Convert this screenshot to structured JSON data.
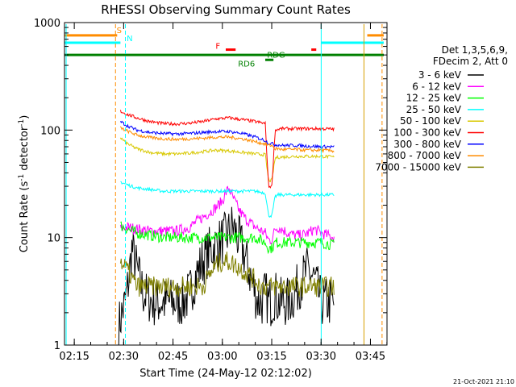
{
  "chart_data": {
    "type": "line",
    "title": "RHESSI Observing Summary Count Rates",
    "xlabel": "Start Time (24-May-12 02:12:02)",
    "ylabel": "Count Rate (s",
    "ylabel_sup": "-1",
    "ylabel_tail": " detector",
    "ylabel_end": ")",
    "yscale": "log",
    "x_unit": "minutes after 02:12:02",
    "xlim": [
      0,
      98
    ],
    "ylim": [
      1,
      1000
    ],
    "x_ticks": [
      {
        "t": 2.97,
        "label": "02:15"
      },
      {
        "t": 17.97,
        "label": "02:30"
      },
      {
        "t": 32.97,
        "label": "02:45"
      },
      {
        "t": 47.97,
        "label": "03:00"
      },
      {
        "t": 62.97,
        "label": "03:15"
      },
      {
        "t": 77.97,
        "label": "03:30"
      },
      {
        "t": 92.97,
        "label": "03:45"
      }
    ],
    "y_ticks": [
      {
        "v": 1,
        "label": "1"
      },
      {
        "v": 10,
        "label": "10"
      },
      {
        "v": 100,
        "label": "100"
      },
      {
        "v": 1000,
        "label": "1000"
      }
    ],
    "legend": {
      "header": [
        "Det 1,3,5,6,9,",
        "FDecim 2, Att 0"
      ],
      "placement": "right"
    },
    "series": [
      {
        "name": "3 - 6 keV",
        "color": "#000000",
        "x": [
          16.5,
          17.5,
          18.5,
          19.5,
          20.5,
          22,
          24,
          27,
          30,
          33,
          36,
          38,
          40,
          42,
          44,
          46,
          48,
          50,
          51,
          52,
          54,
          56,
          58,
          59,
          60,
          61,
          62,
          63,
          64,
          65,
          66,
          68,
          70,
          72,
          74,
          76,
          78,
          80,
          81,
          82
        ],
        "y": [
          1.5,
          2,
          2.5,
          4,
          8,
          5,
          3,
          2.5,
          2.5,
          2.5,
          2.5,
          3,
          4.5,
          6,
          7.5,
          8.5,
          9.5,
          11,
          13,
          11,
          8,
          5,
          3,
          2.5,
          2.5,
          3,
          2.5,
          2.5,
          3,
          2.5,
          2.5,
          2.5,
          3,
          4,
          5,
          4,
          2.5,
          2.5,
          2.5,
          2.5
        ]
      },
      {
        "name": "6 - 12 keV",
        "color": "#ff00ff",
        "x": [
          17,
          19,
          22,
          26,
          30,
          34,
          38,
          40,
          42,
          44,
          46,
          48,
          49,
          50,
          51,
          52,
          53,
          55,
          58,
          61,
          62,
          63,
          64,
          65,
          66,
          68,
          70,
          72,
          74,
          76,
          78,
          80,
          82
        ],
        "y": [
          12,
          12.5,
          12,
          11.5,
          11.5,
          11.5,
          12.5,
          14,
          15.5,
          17,
          19,
          22,
          26,
          29,
          24,
          21,
          18,
          15,
          12.5,
          11,
          9.5,
          9.5,
          12,
          12.5,
          12,
          11,
          10.5,
          10.5,
          11,
          12,
          11,
          10.5,
          10
        ]
      },
      {
        "name": "12 - 25 keV",
        "color": "#00ff00",
        "x": [
          17,
          19,
          22,
          26,
          30,
          34,
          38,
          42,
          46,
          50,
          54,
          58,
          61,
          62,
          63,
          64,
          65,
          66,
          70,
          74,
          78,
          82
        ],
        "y": [
          13,
          12,
          11,
          10.5,
          10,
          10,
          10,
          10,
          10,
          10,
          10,
          10,
          9,
          8,
          8,
          9,
          9,
          9,
          9,
          9,
          9,
          8.5
        ]
      },
      {
        "name": "25 - 50 keV",
        "color": "#00ffff",
        "x": [
          17,
          19,
          22,
          26,
          30,
          34,
          38,
          42,
          46,
          50,
          54,
          58,
          61,
          62,
          63,
          64,
          65,
          66,
          70,
          74,
          78,
          82
        ],
        "y": [
          33,
          31,
          29,
          28,
          27,
          27,
          27,
          27,
          27,
          27,
          27,
          27,
          26,
          16,
          16,
          24,
          25,
          25,
          25,
          25,
          25,
          25
        ]
      },
      {
        "name": "50 - 100 keV",
        "color": "#d8c800",
        "x": [
          17,
          19,
          22,
          26,
          30,
          34,
          38,
          42,
          46,
          50,
          54,
          58,
          61,
          62,
          63,
          64,
          65,
          66,
          70,
          74,
          78,
          82
        ],
        "y": [
          85,
          75,
          67,
          62,
          60,
          60,
          61,
          63,
          65,
          64,
          62,
          60,
          59,
          34,
          34,
          55,
          56,
          56,
          57,
          57,
          57,
          56
        ]
      },
      {
        "name": "100 - 300 keV",
        "color": "#ff0000",
        "x": [
          17,
          19,
          22,
          26,
          30,
          34,
          38,
          42,
          46,
          50,
          54,
          58,
          61,
          62,
          63,
          64,
          65,
          66,
          70,
          74,
          78,
          82
        ],
        "y": [
          150,
          140,
          130,
          120,
          115,
          114,
          116,
          120,
          127,
          130,
          125,
          120,
          115,
          30,
          30,
          100,
          102,
          103,
          103,
          103,
          103,
          102
        ]
      },
      {
        "name": "300 - 800 keV",
        "color": "#0000ff",
        "x": [
          17,
          19,
          22,
          26,
          30,
          34,
          38,
          42,
          46,
          50,
          54,
          58,
          61,
          62,
          63,
          64,
          65,
          66,
          70,
          74,
          78,
          82
        ],
        "y": [
          120,
          110,
          100,
          95,
          93,
          92,
          93,
          95,
          97,
          97,
          93,
          86,
          80,
          75,
          75,
          73,
          73,
          72,
          72,
          71,
          70,
          70
        ]
      },
      {
        "name": "800 - 7000 keV",
        "color": "#ff8c00",
        "x": [
          17,
          19,
          22,
          26,
          30,
          34,
          38,
          42,
          46,
          50,
          54,
          58,
          61,
          62,
          63,
          64,
          65,
          66,
          70,
          74,
          78,
          82
        ],
        "y": [
          105,
          98,
          90,
          85,
          83,
          82,
          83,
          84,
          86,
          86,
          83,
          78,
          74,
          72,
          72,
          67,
          67,
          66,
          66,
          65,
          65,
          64
        ]
      },
      {
        "name": "7000 - 15000 keV",
        "color": "#808000",
        "x": [
          17,
          19,
          22,
          26,
          30,
          34,
          38,
          42,
          44,
          46,
          48,
          50,
          52,
          54,
          56,
          58,
          60,
          61,
          62,
          63,
          64,
          65,
          66,
          70,
          74,
          78,
          82
        ],
        "y": [
          6,
          5,
          3.5,
          3.5,
          3.5,
          3.5,
          3.5,
          3.5,
          4.5,
          5.5,
          6,
          6,
          5.5,
          5,
          4.5,
          4,
          3.5,
          3.5,
          3.5,
          3.5,
          3.5,
          3.5,
          3.5,
          3.5,
          3.5,
          3.5,
          3.5
        ]
      }
    ],
    "annotations": [
      {
        "type": "hline",
        "color": "#ff8c00",
        "y": 760,
        "x0": 0,
        "x1": 16
      },
      {
        "type": "hline",
        "color": "#ff8c00",
        "y": 760,
        "x0": 92,
        "x1": 97
      },
      {
        "type": "hline",
        "color": "#00ffff",
        "y": 650,
        "x0": 0,
        "x1": 17
      },
      {
        "type": "hline",
        "color": "#00ffff",
        "y": 650,
        "x0": 78,
        "x1": 97
      },
      {
        "type": "hline",
        "color": "#008000",
        "y": 500,
        "x0": 0,
        "x1": 97
      },
      {
        "type": "hline",
        "color": "#ff0000",
        "y": 560,
        "x0": 49,
        "x1": 52
      },
      {
        "type": "hline",
        "color": "#ff0000",
        "y": 560,
        "x0": 75,
        "x1": 76.5
      },
      {
        "type": "hline",
        "color": "#008000",
        "y": 450,
        "x0": 61,
        "x1": 63.5
      },
      {
        "type": "vline",
        "color": "#ff8c00",
        "x": 15.5,
        "dashed": true
      },
      {
        "type": "vline",
        "color": "#00ffff",
        "x": 18.5,
        "dashed": true
      },
      {
        "type": "vline",
        "color": "#00ffff",
        "x": 78,
        "dashed": false
      },
      {
        "type": "vline",
        "color": "#d8a000",
        "x": 91,
        "dashed": false
      },
      {
        "type": "vline",
        "color": "#ff8c00",
        "x": 96.5,
        "dashed": true
      },
      {
        "type": "vline",
        "color": "#00ffff",
        "x": 0.5,
        "dashed": false
      }
    ],
    "labels": [
      {
        "text": "S",
        "color": "#ff8c00",
        "x": 16.6,
        "y": 800
      },
      {
        "text": "N",
        "color": "#00ffff",
        "x": 19.8,
        "y": 670
      },
      {
        "text": "F",
        "color": "#ff0000",
        "x": 46.6,
        "y": 570
      },
      {
        "text": "RDG",
        "color": "#008000",
        "x": 64.3,
        "y": 470
      },
      {
        "text": "RD6",
        "color": "#008000",
        "x": 55.3,
        "y": 390
      }
    ]
  },
  "timestamp": "21-Oct-2021 21:10"
}
